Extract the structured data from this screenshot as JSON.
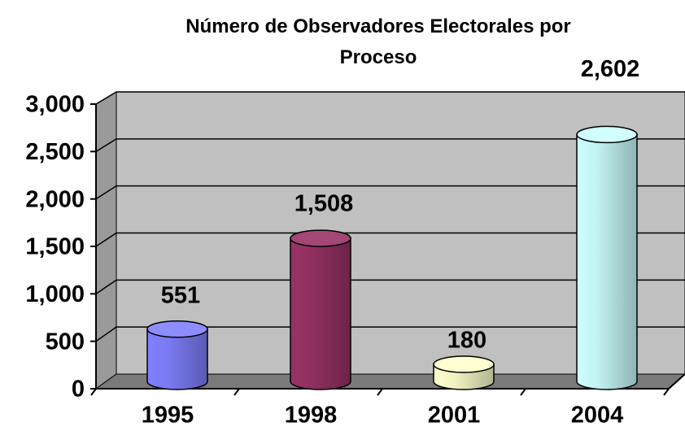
{
  "chart_data": {
    "type": "bar3d_cylinder",
    "title": "Número de Observadores Electorales por Proceso",
    "categories": [
      "1995",
      "1998",
      "2001",
      "2004"
    ],
    "values": [
      551,
      1508,
      180,
      2602
    ],
    "value_labels": [
      "551",
      "1,508",
      "180",
      "2,602"
    ],
    "colors": [
      "#8080ff",
      "#993366",
      "#ffffcc",
      "#ccffff"
    ],
    "ylim": [
      0,
      3000
    ],
    "yticks": [
      0,
      500,
      {
        "value": 1000,
        "label": "1,000"
      },
      {
        "value": 1500,
        "label": "1,500"
      },
      {
        "value": 2000,
        "label": "2,000"
      },
      {
        "value": 2500,
        "label": "2,500"
      },
      {
        "value": 3000,
        "label": "3,000"
      }
    ],
    "grid": true
  }
}
